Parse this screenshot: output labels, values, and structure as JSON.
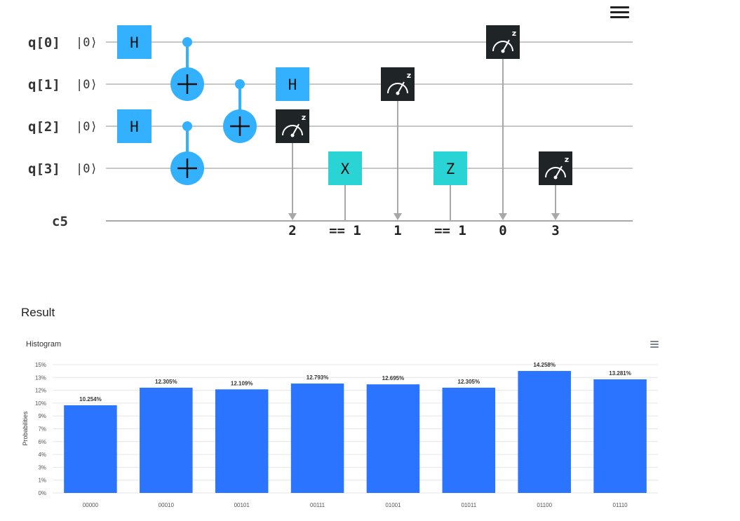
{
  "circuit": {
    "qubits": [
      {
        "label": "q[0]",
        "init": "|0⟩"
      },
      {
        "label": "q[1]",
        "init": "|0⟩"
      },
      {
        "label": "q[2]",
        "init": "|0⟩"
      },
      {
        "label": "q[3]",
        "init": "|0⟩"
      }
    ],
    "classical_register": "c5",
    "gate_labels": {
      "h": "H",
      "x": "X",
      "z": "Z",
      "measure_basis": "z"
    },
    "classical_labels": {
      "m_q2": "2",
      "x_cond": "== 1",
      "m_q1": "1",
      "z_cond": "== 1",
      "m_q0": "0",
      "m_q3": "3"
    },
    "colors": {
      "h_gate": "#33b1ff",
      "cnot": "#33b1ff",
      "xz_gate": "#2ad4d4",
      "measure": "#1f2427",
      "wire": "#c6c6c6",
      "classical_wire": "#a8a8a8"
    }
  },
  "result": {
    "title": "Result"
  },
  "chart_data": {
    "type": "bar",
    "title": "Histogram",
    "xlabel": "",
    "ylabel": "Probabilities",
    "categories": [
      "00000",
      "00010",
      "00101",
      "00111",
      "01001",
      "01011",
      "01100",
      "01110"
    ],
    "values": [
      10.254,
      12.305,
      12.109,
      12.793,
      12.695,
      12.305,
      14.258,
      13.281
    ],
    "value_labels": [
      "10.254%",
      "12.305%",
      "12.109%",
      "12.793%",
      "12.695%",
      "12.305%",
      "14.258%",
      "13.281%"
    ],
    "ylim": [
      0,
      15
    ],
    "yticks": [
      "0%",
      "1%",
      "3%",
      "4%",
      "6%",
      "7%",
      "9%",
      "10%",
      "12%",
      "13%",
      "15%"
    ],
    "grid": true,
    "bar_color": "#2a74ff"
  }
}
